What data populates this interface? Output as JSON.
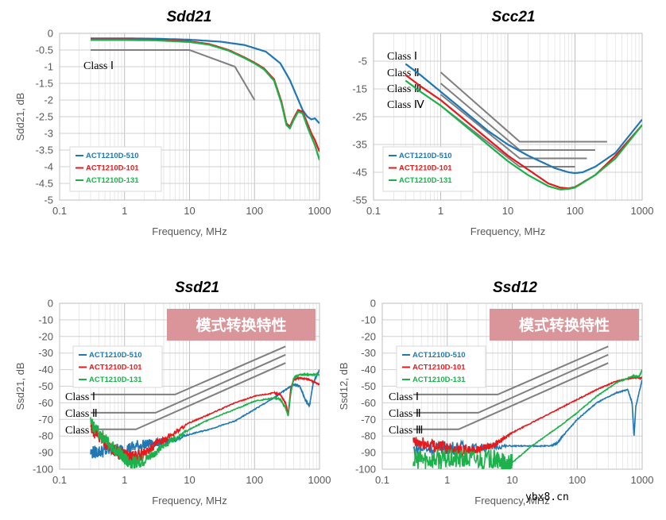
{
  "colors": {
    "blue": "#1F77B4",
    "red": "#E41A1C",
    "green": "#1DB14B",
    "limit": "#7F7F7F",
    "banner": "#D9959A"
  },
  "watermark": "ybx8.cn",
  "chart_data": [
    {
      "id": "sdd21",
      "type": "line",
      "title": "Sdd21",
      "xlabel": "Frequency, MHz",
      "ylabel": "Sdd21, dB",
      "xscale": "log",
      "xlim": [
        0.1,
        1000
      ],
      "ylim": [
        -5,
        0
      ],
      "xticks": [
        0.1,
        1,
        10,
        100,
        1000
      ],
      "yticks": [
        0,
        -0.5,
        -1,
        -1.5,
        -2,
        -2.5,
        -3,
        -3.5,
        -4,
        -4.5,
        -5
      ],
      "ytick_labels": [
        "0",
        "-0.5",
        "-1",
        "-1.5",
        "-2",
        "-2.5",
        "-3",
        "-3.5",
        "-4",
        "-4.5",
        "-5"
      ],
      "legend": {
        "position": "bottom-left",
        "entries": [
          "ACT1210D-510",
          "ACT1210D-101",
          "ACT1210D-131"
        ]
      },
      "series": [
        {
          "name": "ACT1210D-510",
          "color": "blue",
          "x": [
            0.3,
            1,
            3,
            10,
            30,
            70,
            150,
            250,
            350,
            450,
            550,
            650,
            750,
            850,
            1000
          ],
          "y": [
            -0.15,
            -0.15,
            -0.16,
            -0.19,
            -0.25,
            -0.35,
            -0.55,
            -0.9,
            -1.4,
            -1.9,
            -2.3,
            -2.5,
            -2.58,
            -2.55,
            -2.7
          ]
        },
        {
          "name": "ACT1210D-101",
          "color": "red",
          "x": [
            0.3,
            1,
            3,
            10,
            20,
            40,
            70,
            100,
            140,
            200,
            260,
            310,
            350,
            400,
            470,
            550,
            650,
            750,
            850,
            1000
          ],
          "y": [
            -0.18,
            -0.18,
            -0.19,
            -0.24,
            -0.32,
            -0.5,
            -0.72,
            -0.88,
            -1.05,
            -1.38,
            -2.05,
            -2.7,
            -2.8,
            -2.55,
            -2.3,
            -2.35,
            -2.7,
            -3.0,
            -3.2,
            -3.55
          ]
        },
        {
          "name": "ACT1210D-131",
          "color": "green",
          "x": [
            0.3,
            1,
            3,
            10,
            20,
            40,
            70,
            100,
            140,
            200,
            260,
            310,
            350,
            400,
            470,
            550,
            650,
            750,
            850,
            1000
          ],
          "y": [
            -0.2,
            -0.2,
            -0.21,
            -0.26,
            -0.34,
            -0.52,
            -0.74,
            -0.9,
            -1.08,
            -1.42,
            -2.1,
            -2.75,
            -2.85,
            -2.6,
            -2.35,
            -2.4,
            -2.8,
            -3.1,
            -3.35,
            -3.8
          ]
        }
      ],
      "limits": [
        {
          "label": "Class Ⅰ",
          "x": [
            0.3,
            10,
            50,
            100
          ],
          "y": [
            -0.5,
            -0.5,
            -1.0,
            -2.0
          ]
        }
      ],
      "annotations": []
    },
    {
      "id": "scc21",
      "type": "line",
      "title": "Scc21",
      "xlabel": "Frequency, MHz",
      "ylabel": "",
      "xscale": "log",
      "xlim": [
        0.1,
        1000
      ],
      "ylim": [
        -55,
        5
      ],
      "xticks": [
        0.1,
        1,
        10,
        100,
        1000
      ],
      "yticks": [
        -5,
        -15,
        -25,
        -35,
        -45,
        -55
      ],
      "ytick_labels": [
        "-5",
        "-15",
        "-25",
        "-35",
        "-45",
        "-55"
      ],
      "legend": {
        "position": "bottom-left",
        "entries": [
          "ACT1210D-510",
          "ACT1210D-101",
          "ACT1210D-131"
        ]
      },
      "series": [
        {
          "name": "ACT1210D-510",
          "color": "blue",
          "x": [
            0.3,
            0.5,
            1,
            2,
            5,
            10,
            20,
            50,
            80,
            100,
            130,
            200,
            400,
            1000
          ],
          "y": [
            -6,
            -10,
            -16,
            -22,
            -30,
            -35,
            -39,
            -43.5,
            -45,
            -45.3,
            -45,
            -43,
            -38,
            -26
          ]
        },
        {
          "name": "ACT1210D-101",
          "color": "red",
          "x": [
            0.3,
            0.5,
            1,
            2,
            5,
            10,
            20,
            40,
            60,
            80,
            100,
            200,
            400,
            1000
          ],
          "y": [
            -10,
            -14,
            -19,
            -25,
            -33,
            -39,
            -44,
            -49,
            -50.5,
            -50.8,
            -50.3,
            -46,
            -39,
            -28
          ]
        },
        {
          "name": "ACT1210D-131",
          "color": "green",
          "x": [
            0.3,
            0.5,
            1,
            2,
            5,
            10,
            20,
            40,
            60,
            80,
            100,
            200,
            400,
            1000
          ],
          "y": [
            -12,
            -16,
            -21,
            -27,
            -35,
            -41,
            -46,
            -50,
            -51.2,
            -51,
            -50.5,
            -46,
            -40,
            -28
          ]
        }
      ],
      "limits": [
        {
          "label": "Class Ⅰ",
          "x": [
            1,
            15,
            300
          ],
          "y": [
            -9,
            -34,
            -34
          ]
        },
        {
          "label": "Class Ⅱ",
          "x": [
            1,
            15,
            200
          ],
          "y": [
            -13,
            -37,
            -37
          ]
        },
        {
          "label": "Class Ⅲ",
          "x": [
            1,
            15,
            150
          ],
          "y": [
            -17,
            -40,
            -40
          ]
        },
        {
          "label": "Class Ⅳ",
          "x": [
            1,
            15,
            100
          ],
          "y": [
            -21,
            -43,
            -43
          ]
        }
      ],
      "annotations": []
    },
    {
      "id": "ssd21",
      "type": "line",
      "title": "Ssd21",
      "xlabel": "Frequency, MHz",
      "ylabel": "Ssd21, dB",
      "xscale": "log",
      "xlim": [
        0.1,
        1000
      ],
      "ylim": [
        -100,
        0
      ],
      "xticks": [
        0.1,
        1,
        10,
        100,
        1000
      ],
      "yticks": [
        0,
        -10,
        -20,
        -30,
        -40,
        -50,
        -60,
        -70,
        -80,
        -90,
        -100
      ],
      "ytick_labels": [
        "0",
        "-10",
        "-20",
        "-30",
        "-40",
        "-50",
        "-60",
        "-70",
        "-80",
        "-90",
        "-100"
      ],
      "legend": {
        "position": "top-left",
        "entries": [
          "ACT1210D-510",
          "ACT1210D-101",
          "ACT1210D-131"
        ]
      },
      "series": [
        {
          "name": "ACT1210D-510",
          "color": "blue",
          "noise": true,
          "x": [
            0.3,
            0.5,
            1,
            2,
            3,
            5,
            10,
            20,
            50,
            100,
            200,
            300,
            400,
            500,
            600,
            700,
            800,
            1000
          ],
          "y": [
            -90,
            -89,
            -88,
            -85,
            -84,
            -83,
            -79,
            -76,
            -71,
            -64,
            -57,
            -52,
            -49,
            -50,
            -58,
            -62,
            -48,
            -40
          ]
        },
        {
          "name": "ACT1210D-101",
          "color": "red",
          "noise": true,
          "x": [
            0.3,
            0.5,
            0.8,
            1,
            1.3,
            2,
            3,
            5,
            10,
            20,
            50,
            100,
            200,
            250,
            300,
            330,
            360,
            400,
            500,
            700,
            1000
          ],
          "y": [
            -75,
            -84,
            -90,
            -92,
            -93,
            -91,
            -85,
            -80,
            -72,
            -67,
            -60,
            -56,
            -54,
            -55,
            -60,
            -67,
            -52,
            -46,
            -45,
            -46,
            -49
          ]
        },
        {
          "name": "ACT1210D-131",
          "color": "green",
          "noise": true,
          "x": [
            0.3,
            0.5,
            0.8,
            1,
            1.3,
            2,
            3,
            5,
            10,
            20,
            50,
            100,
            200,
            250,
            300,
            330,
            360,
            400,
            500,
            700,
            1000
          ],
          "y": [
            -72,
            -82,
            -90,
            -94,
            -96,
            -95,
            -90,
            -83,
            -76,
            -70,
            -64,
            -59,
            -57,
            -58,
            -63,
            -68,
            -55,
            -45,
            -43,
            -43,
            -43
          ]
        }
      ],
      "limits": [
        {
          "label": "Class Ⅰ",
          "x": [
            0.3,
            6,
            300
          ],
          "y": [
            -55,
            -55,
            -26
          ]
        },
        {
          "label": "Class Ⅱ",
          "x": [
            0.3,
            3,
            300
          ],
          "y": [
            -66,
            -66,
            -31
          ]
        },
        {
          "label": "Class Ⅲ",
          "x": [
            0.3,
            1.5,
            300
          ],
          "y": [
            -76,
            -76,
            -36
          ]
        }
      ],
      "annotations": [
        "模式转换特性"
      ]
    },
    {
      "id": "ssd12",
      "type": "line",
      "title": "Ssd12",
      "xlabel": "Frequency, MHz",
      "ylabel": "Ssd12, dB",
      "xscale": "log",
      "xlim": [
        0.1,
        1000
      ],
      "ylim": [
        -100,
        0
      ],
      "xticks": [
        0.1,
        1,
        10,
        100,
        1000
      ],
      "yticks": [
        0,
        -10,
        -20,
        -30,
        -40,
        -50,
        -60,
        -70,
        -80,
        -90,
        -100
      ],
      "ytick_labels": [
        "0",
        "-10",
        "-20",
        "-30",
        "-40",
        "-50",
        "-60",
        "-70",
        "-80",
        "-90",
        "-100"
      ],
      "legend": {
        "position": "top-left",
        "entries": [
          "ACT1210D-510",
          "ACT1210D-101",
          "ACT1210D-131"
        ]
      },
      "series": [
        {
          "name": "ACT1210D-510",
          "color": "blue",
          "noise": true,
          "x": [
            0.3,
            1,
            3,
            10,
            20,
            40,
            50,
            60,
            100,
            200,
            400,
            600,
            700,
            750,
            800,
            1000
          ],
          "y": [
            -88,
            -87,
            -87,
            -86,
            -86,
            -86,
            -84,
            -80,
            -70,
            -60,
            -54,
            -52,
            -60,
            -80,
            -62,
            -46
          ]
        },
        {
          "name": "ACT1210D-101",
          "color": "red",
          "noise": true,
          "x": [
            0.3,
            0.5,
            1,
            2,
            3,
            5,
            7,
            10,
            20,
            50,
            100,
            200,
            400,
            700,
            1000
          ],
          "y": [
            -84,
            -85,
            -87,
            -89,
            -88,
            -86,
            -82,
            -78,
            -72,
            -64,
            -58,
            -52,
            -47,
            -45,
            -45
          ]
        },
        {
          "name": "ACT1210D-131",
          "color": "green",
          "noise": true,
          "x": [
            0.3,
            0.5,
            1,
            2,
            5,
            7,
            8,
            10,
            20,
            50,
            100,
            200,
            400,
            700,
            900,
            1000
          ],
          "y": [
            -94,
            -94,
            -94,
            -94,
            -94,
            -96,
            -99,
            -96,
            -86,
            -75,
            -66,
            -56,
            -48,
            -44,
            -44,
            -40
          ]
        }
      ],
      "limits": [
        {
          "label": "Class Ⅰ",
          "x": [
            0.3,
            6,
            300
          ],
          "y": [
            -55,
            -55,
            -26
          ]
        },
        {
          "label": "Class Ⅱ",
          "x": [
            0.3,
            3,
            300
          ],
          "y": [
            -66,
            -66,
            -31
          ]
        },
        {
          "label": "Class Ⅲ",
          "x": [
            0.3,
            1.5,
            300
          ],
          "y": [
            -76,
            -76,
            -36
          ]
        }
      ],
      "annotations": [
        "模式转换特性"
      ]
    }
  ]
}
